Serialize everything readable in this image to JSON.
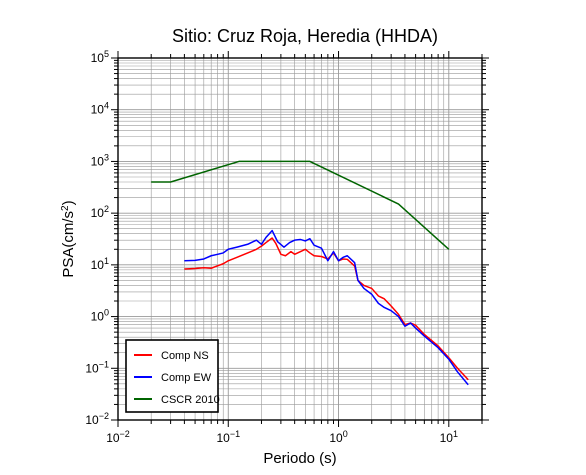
{
  "chart_data": {
    "type": "line",
    "title": "Sitio: Cruz Roja, Heredia (HHDA)",
    "xlabel": "Periodo (s)",
    "ylabel": {
      "base": "PSA(cm/s",
      "sup": "2",
      "tail": ")"
    },
    "x_scale": "log",
    "y_scale": "log",
    "xlim": [
      0.01,
      20
    ],
    "ylim": [
      0.01,
      100000
    ],
    "x_ticks": [
      {
        "base": "10",
        "exp": "−2",
        "value": 0.01
      },
      {
        "base": "10",
        "exp": "−1",
        "value": 0.1
      },
      {
        "base": "10",
        "exp": "0",
        "value": 1
      },
      {
        "base": "10",
        "exp": "1",
        "value": 10
      }
    ],
    "y_ticks": [
      {
        "base": "10",
        "exp": "−2",
        "value": 0.01
      },
      {
        "base": "10",
        "exp": "−1",
        "value": 0.1
      },
      {
        "base": "10",
        "exp": "0",
        "value": 1
      },
      {
        "base": "10",
        "exp": "1",
        "value": 10
      },
      {
        "base": "10",
        "exp": "2",
        "value": 100
      },
      {
        "base": "10",
        "exp": "3",
        "value": 1000
      },
      {
        "base": "10",
        "exp": "4",
        "value": 10000
      },
      {
        "base": "10",
        "exp": "5",
        "value": 100000
      }
    ],
    "grid": true,
    "legend_position": "bottom-left",
    "series": [
      {
        "name": "Comp NS",
        "color": "#ff0000",
        "points": [
          [
            0.04,
            8.3
          ],
          [
            0.05,
            8.5
          ],
          [
            0.06,
            8.8
          ],
          [
            0.07,
            8.6
          ],
          [
            0.08,
            9.6
          ],
          [
            0.09,
            10.5
          ],
          [
            0.1,
            12
          ],
          [
            0.12,
            14
          ],
          [
            0.15,
            17
          ],
          [
            0.18,
            20
          ],
          [
            0.2,
            23
          ],
          [
            0.22,
            27
          ],
          [
            0.25,
            33
          ],
          [
            0.27,
            26
          ],
          [
            0.3,
            16
          ],
          [
            0.33,
            15
          ],
          [
            0.37,
            18
          ],
          [
            0.4,
            16
          ],
          [
            0.45,
            18
          ],
          [
            0.5,
            20
          ],
          [
            0.55,
            17
          ],
          [
            0.6,
            15
          ],
          [
            0.7,
            14.5
          ],
          [
            0.8,
            13
          ],
          [
            0.9,
            17
          ],
          [
            1.0,
            12
          ],
          [
            1.1,
            13
          ],
          [
            1.2,
            12.8
          ],
          [
            1.4,
            9.5
          ],
          [
            1.5,
            5
          ],
          [
            1.7,
            4
          ],
          [
            2.0,
            3.5
          ],
          [
            2.3,
            2.5
          ],
          [
            2.6,
            2.2
          ],
          [
            3.0,
            1.6
          ],
          [
            3.5,
            1.1
          ],
          [
            4.0,
            0.7
          ],
          [
            4.5,
            0.75
          ],
          [
            5.0,
            0.68
          ],
          [
            6.0,
            0.45
          ],
          [
            8.0,
            0.27
          ],
          [
            10,
            0.16
          ],
          [
            12,
            0.1
          ],
          [
            15,
            0.06
          ]
        ]
      },
      {
        "name": "Comp EW",
        "color": "#0000ff",
        "points": [
          [
            0.04,
            12
          ],
          [
            0.05,
            12.2
          ],
          [
            0.06,
            13
          ],
          [
            0.07,
            15
          ],
          [
            0.08,
            16
          ],
          [
            0.09,
            17
          ],
          [
            0.1,
            20
          ],
          [
            0.12,
            22
          ],
          [
            0.15,
            25
          ],
          [
            0.18,
            30
          ],
          [
            0.2,
            25
          ],
          [
            0.22,
            34
          ],
          [
            0.25,
            46
          ],
          [
            0.28,
            28
          ],
          [
            0.32,
            22
          ],
          [
            0.36,
            27
          ],
          [
            0.4,
            30
          ],
          [
            0.45,
            31
          ],
          [
            0.5,
            29
          ],
          [
            0.55,
            32
          ],
          [
            0.6,
            24
          ],
          [
            0.7,
            21
          ],
          [
            0.8,
            12
          ],
          [
            0.9,
            18
          ],
          [
            1.0,
            12
          ],
          [
            1.1,
            14
          ],
          [
            1.2,
            15
          ],
          [
            1.4,
            11
          ],
          [
            1.5,
            5
          ],
          [
            1.7,
            3.5
          ],
          [
            2.0,
            2.7
          ],
          [
            2.3,
            1.8
          ],
          [
            2.6,
            1.5
          ],
          [
            3.0,
            1.3
          ],
          [
            3.5,
            1.0
          ],
          [
            4.0,
            0.65
          ],
          [
            4.5,
            0.75
          ],
          [
            5.0,
            0.6
          ],
          [
            6.0,
            0.42
          ],
          [
            8.0,
            0.25
          ],
          [
            10,
            0.15
          ],
          [
            12,
            0.085
          ],
          [
            15,
            0.048
          ]
        ]
      },
      {
        "name": "CSCR 2010",
        "color": "#006400",
        "points": [
          [
            0.02,
            400
          ],
          [
            0.03,
            400
          ],
          [
            0.125,
            1000
          ],
          [
            0.55,
            1000
          ],
          [
            3.5,
            150
          ],
          [
            10,
            20
          ]
        ]
      }
    ]
  }
}
